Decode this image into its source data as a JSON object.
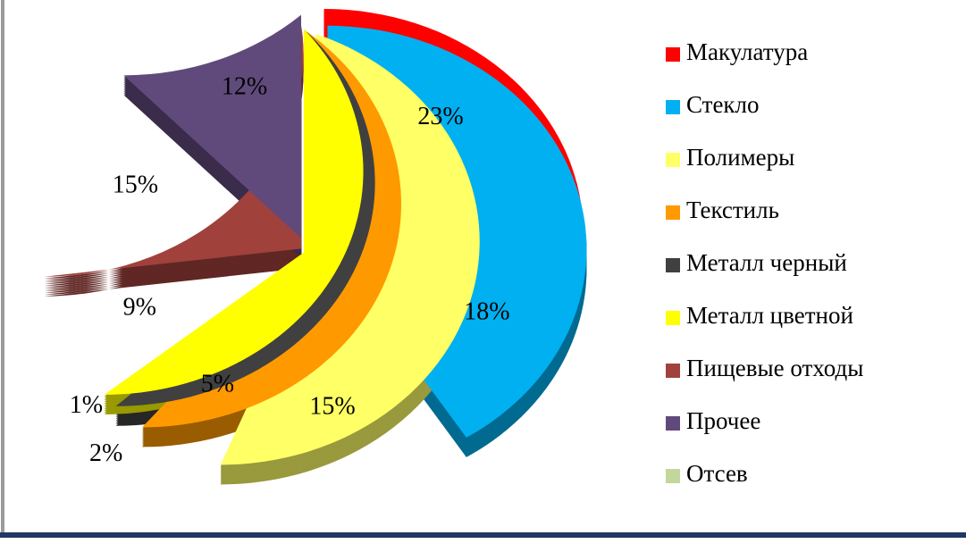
{
  "chart_data": {
    "type": "pie",
    "categories": [
      "Макулатура",
      "Стекло",
      "Полимеры",
      "Текстиль",
      "Металл черный",
      "Металл цветной",
      "Пищевые отходы",
      "Прочее",
      "Отсев"
    ],
    "values": [
      23,
      18,
      15,
      5,
      2,
      1,
      9,
      15,
      12
    ],
    "value_labels": [
      "23%",
      "18%",
      "15%",
      "5%",
      "2%",
      "1%",
      "9%",
      "15%",
      "12%"
    ],
    "colors": [
      "#ff0000",
      "#00b0f0",
      "#ffff66",
      "#ff9900",
      "#404040",
      "#ffff00",
      "#a0413c",
      "#604a7b",
      "#c3d69b"
    ],
    "legend": "right"
  }
}
